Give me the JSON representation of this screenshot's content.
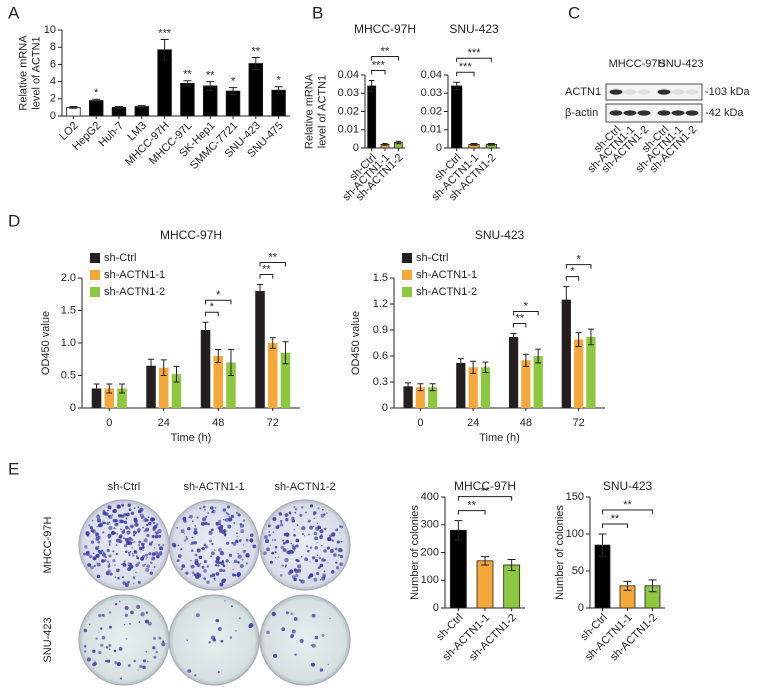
{
  "panels": [
    "A",
    "B",
    "C",
    "D",
    "E"
  ],
  "chart_data": [
    {
      "type": "bar",
      "ylabel": [
        "Relative mRNA",
        "level of ACTN1"
      ],
      "categories": [
        "LO2",
        "HepG2",
        "Huh-7",
        "LM3",
        "MHCC-97H",
        "MHCC-97L",
        "SK-Hep1",
        "SMMC-7721",
        "SNU-423",
        "SNU-475"
      ],
      "values": [
        1,
        1.8,
        1.0,
        1.1,
        7.7,
        3.8,
        3.5,
        2.9,
        6.1,
        3.0
      ],
      "errors": [
        0.1,
        0.15,
        0.1,
        0.1,
        1.2,
        0.3,
        0.5,
        0.4,
        0.7,
        0.4
      ],
      "colors": [
        "#ffffff",
        "#000000",
        "#000000",
        "#000000",
        "#000000",
        "#000000",
        "#000000",
        "#000000",
        "#000000",
        "#000000"
      ],
      "significance": [
        null,
        "*",
        null,
        null,
        "***",
        "**",
        "**",
        "*",
        "**",
        "*"
      ],
      "ylim": [
        0,
        10
      ],
      "yticks": [
        0,
        2,
        4,
        6,
        8,
        10
      ]
    },
    {
      "type": "bar",
      "title": "MHCC-97H",
      "ylabel": [
        "Relative mRNA",
        "level of ACTN1"
      ],
      "categories": [
        "sh-Ctrl",
        "sh-ACTN1-1",
        "sh-ACTN1-2"
      ],
      "values": [
        0.034,
        0.002,
        0.003
      ],
      "errors": [
        0.003,
        0.0005,
        0.0007
      ],
      "colors": [
        "#000000",
        "#f5a83a",
        "#8dc63f"
      ],
      "brackets": [
        {
          "bars": [
            0,
            1
          ],
          "text": "***"
        },
        {
          "bars": [
            0,
            2
          ],
          "text": "**"
        }
      ],
      "ylim": [
        0,
        0.04
      ],
      "yticks": [
        0,
        0.01,
        0.02,
        0.03,
        0.04
      ]
    },
    {
      "type": "bar",
      "title": "SNU-423",
      "categories": [
        "sh-Ctrl",
        "sh-ACTN1-1",
        "sh-ACTN1-2"
      ],
      "values": [
        0.034,
        0.002,
        0.002
      ],
      "errors": [
        0.002,
        0.0005,
        0.0005
      ],
      "colors": [
        "#000000",
        "#f5a83a",
        "#8dc63f"
      ],
      "brackets": [
        {
          "bars": [
            0,
            1
          ],
          "text": "***"
        },
        {
          "bars": [
            0,
            2
          ],
          "text": "***"
        }
      ],
      "ylim": [
        0,
        0.04
      ],
      "yticks": [
        0,
        0.01,
        0.02,
        0.03,
        0.04
      ]
    },
    {
      "type": "grouped_bar",
      "title": "MHCC-97H",
      "xlabel": "Time (h)",
      "ylabel": [
        "OD450 value"
      ],
      "categories": [
        "0",
        "24",
        "48",
        "72"
      ],
      "legend": "upper left",
      "series": [
        {
          "name": "sh-Ctrl",
          "color": "#231f20",
          "values": [
            0.3,
            0.65,
            1.2,
            1.8
          ],
          "errors": [
            0.07,
            0.1,
            0.12,
            0.1
          ]
        },
        {
          "name": "sh-ACTN1-1",
          "color": "#f5a83a",
          "values": [
            0.3,
            0.62,
            0.8,
            1.0
          ],
          "errors": [
            0.07,
            0.12,
            0.1,
            0.08
          ]
        },
        {
          "name": "sh-ACTN1-2",
          "color": "#8dc63f",
          "values": [
            0.3,
            0.52,
            0.7,
            0.85
          ],
          "errors": [
            0.07,
            0.12,
            0.2,
            0.17
          ]
        }
      ],
      "brackets": [
        {
          "category": 2,
          "series": [
            0,
            1
          ],
          "text": "*"
        },
        {
          "category": 2,
          "series": [
            0,
            2
          ],
          "text": "*"
        },
        {
          "category": 3,
          "series": [
            0,
            1
          ],
          "text": "**"
        },
        {
          "category": 3,
          "series": [
            0,
            2
          ],
          "text": "**"
        }
      ],
      "ylim": [
        0,
        2.0
      ],
      "yticks": [
        0,
        0.5,
        {
          "value": 1.0,
          "label": "1.0"
        },
        1.5,
        {
          "value": 2.0,
          "label": "2.0"
        }
      ]
    },
    {
      "type": "grouped_bar",
      "title": "SNU-423",
      "xlabel": "Time (h)",
      "ylabel": [
        "OD450 value"
      ],
      "categories": [
        "0",
        "24",
        "48",
        "72"
      ],
      "legend": "upper left",
      "series": [
        {
          "name": "sh-Ctrl",
          "color": "#231f20",
          "values": [
            0.25,
            0.52,
            0.82,
            1.25
          ],
          "errors": [
            0.04,
            0.05,
            0.04,
            0.15
          ]
        },
        {
          "name": "sh-ACTN1-1",
          "color": "#f5a83a",
          "values": [
            0.24,
            0.47,
            0.55,
            0.79
          ],
          "errors": [
            0.04,
            0.07,
            0.07,
            0.08
          ]
        },
        {
          "name": "sh-ACTN1-2",
          "color": "#8dc63f",
          "values": [
            0.24,
            0.47,
            0.6,
            0.82
          ],
          "errors": [
            0.04,
            0.06,
            0.08,
            0.09
          ]
        }
      ],
      "brackets": [
        {
          "category": 2,
          "series": [
            0,
            1
          ],
          "text": "**"
        },
        {
          "category": 2,
          "series": [
            0,
            2
          ],
          "text": "*"
        },
        {
          "category": 3,
          "series": [
            0,
            1
          ],
          "text": "*"
        },
        {
          "category": 3,
          "series": [
            0,
            2
          ],
          "text": "*"
        }
      ],
      "ylim": [
        0,
        1.5
      ],
      "yticks": [
        0,
        0.3,
        0.6,
        0.9,
        1.2,
        1.5
      ]
    },
    {
      "type": "bar",
      "title": "MHCC-97H",
      "ylabel": [
        "Number of colonies"
      ],
      "categories": [
        "sh-Ctrl",
        "sh-ACTN1-1",
        "sh-ACTN1-2"
      ],
      "values": [
        280,
        170,
        155
      ],
      "errors": [
        35,
        15,
        20
      ],
      "colors": [
        "#000000",
        "#f5a83a",
        "#8dc63f"
      ],
      "brackets": [
        {
          "bars": [
            0,
            1
          ],
          "text": "**"
        },
        {
          "bars": [
            0,
            2
          ],
          "text": "**"
        }
      ],
      "ylim": [
        0,
        400
      ],
      "yticks": [
        0,
        100,
        200,
        300,
        400
      ]
    },
    {
      "type": "bar",
      "title": "SNU-423",
      "ylabel": [
        "Number of colonies"
      ],
      "categories": [
        "sh-Ctrl",
        "sh-ACTN1-1",
        "sh-ACTN1-2"
      ],
      "values": [
        85,
        30,
        30
      ],
      "errors": [
        15,
        6,
        8
      ],
      "colors": [
        "#000000",
        "#f5a83a",
        "#8dc63f"
      ],
      "brackets": [
        {
          "bars": [
            0,
            1
          ],
          "text": "**"
        },
        {
          "bars": [
            0,
            2
          ],
          "text": "**"
        }
      ],
      "ylim": [
        0,
        150
      ],
      "yticks": [
        0,
        50,
        100,
        150
      ]
    }
  ],
  "blot": {
    "cell_lines": [
      "MHCC-97H",
      "SNU-423"
    ],
    "lanes": [
      "sh-Ctrl",
      "sh-ACTN1-1",
      "sh-ACTN1-2",
      "sh-Ctrl",
      "sh-ACTN1-1",
      "sh-ACTN1-2"
    ],
    "rows": [
      {
        "label": "ACTN1",
        "size": "-103 kDa"
      },
      {
        "label": "β-actin",
        "size": "-42 kDa"
      }
    ]
  },
  "colony": {
    "columns": [
      "sh-Ctrl",
      "sh-ACTN1-1",
      "sh-ACTN1-2"
    ],
    "rows": [
      "MHCC-97H",
      "SNU-423"
    ]
  }
}
